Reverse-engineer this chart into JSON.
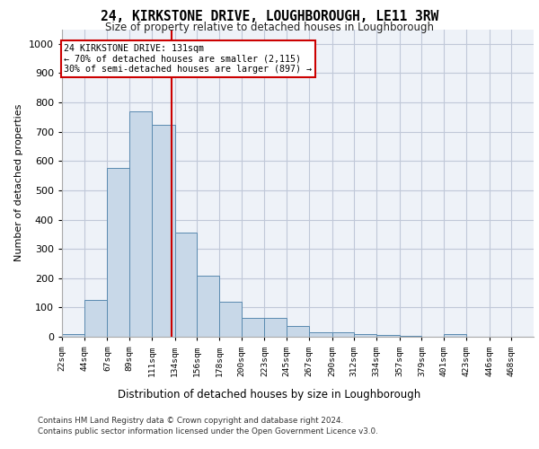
{
  "title": "24, KIRKSTONE DRIVE, LOUGHBOROUGH, LE11 3RW",
  "subtitle": "Size of property relative to detached houses in Loughborough",
  "xlabel": "Distribution of detached houses by size in Loughborough",
  "ylabel": "Number of detached properties",
  "footnote1": "Contains HM Land Registry data © Crown copyright and database right 2024.",
  "footnote2": "Contains public sector information licensed under the Open Government Licence v3.0.",
  "annotation_line1": "24 KIRKSTONE DRIVE: 131sqm",
  "annotation_line2": "← 70% of detached houses are smaller (2,115)",
  "annotation_line3": "30% of semi-detached houses are larger (897) →",
  "bar_color": "#c8d8e8",
  "bar_edge_color": "#5a8ab0",
  "grid_color": "#c0c8d8",
  "background_color": "#eef2f8",
  "ref_line_color": "#cc0000",
  "ref_line_x": 131,
  "categories": [
    "22sqm",
    "44sqm",
    "67sqm",
    "89sqm",
    "111sqm",
    "134sqm",
    "156sqm",
    "178sqm",
    "200sqm",
    "223sqm",
    "245sqm",
    "267sqm",
    "290sqm",
    "312sqm",
    "334sqm",
    "357sqm",
    "379sqm",
    "401sqm",
    "423sqm",
    "446sqm",
    "468sqm"
  ],
  "bin_edges": [
    22,
    44,
    67,
    89,
    111,
    134,
    156,
    178,
    200,
    223,
    245,
    267,
    290,
    312,
    334,
    357,
    379,
    401,
    423,
    446,
    468,
    490
  ],
  "values": [
    10,
    125,
    575,
    770,
    725,
    355,
    210,
    120,
    65,
    65,
    38,
    15,
    15,
    8,
    5,
    2,
    0,
    8,
    0,
    0,
    0
  ],
  "ylim": [
    0,
    1050
  ],
  "yticks": [
    0,
    100,
    200,
    300,
    400,
    500,
    600,
    700,
    800,
    900,
    1000
  ],
  "title_fontsize": 10.5,
  "subtitle_fontsize": 8.5
}
